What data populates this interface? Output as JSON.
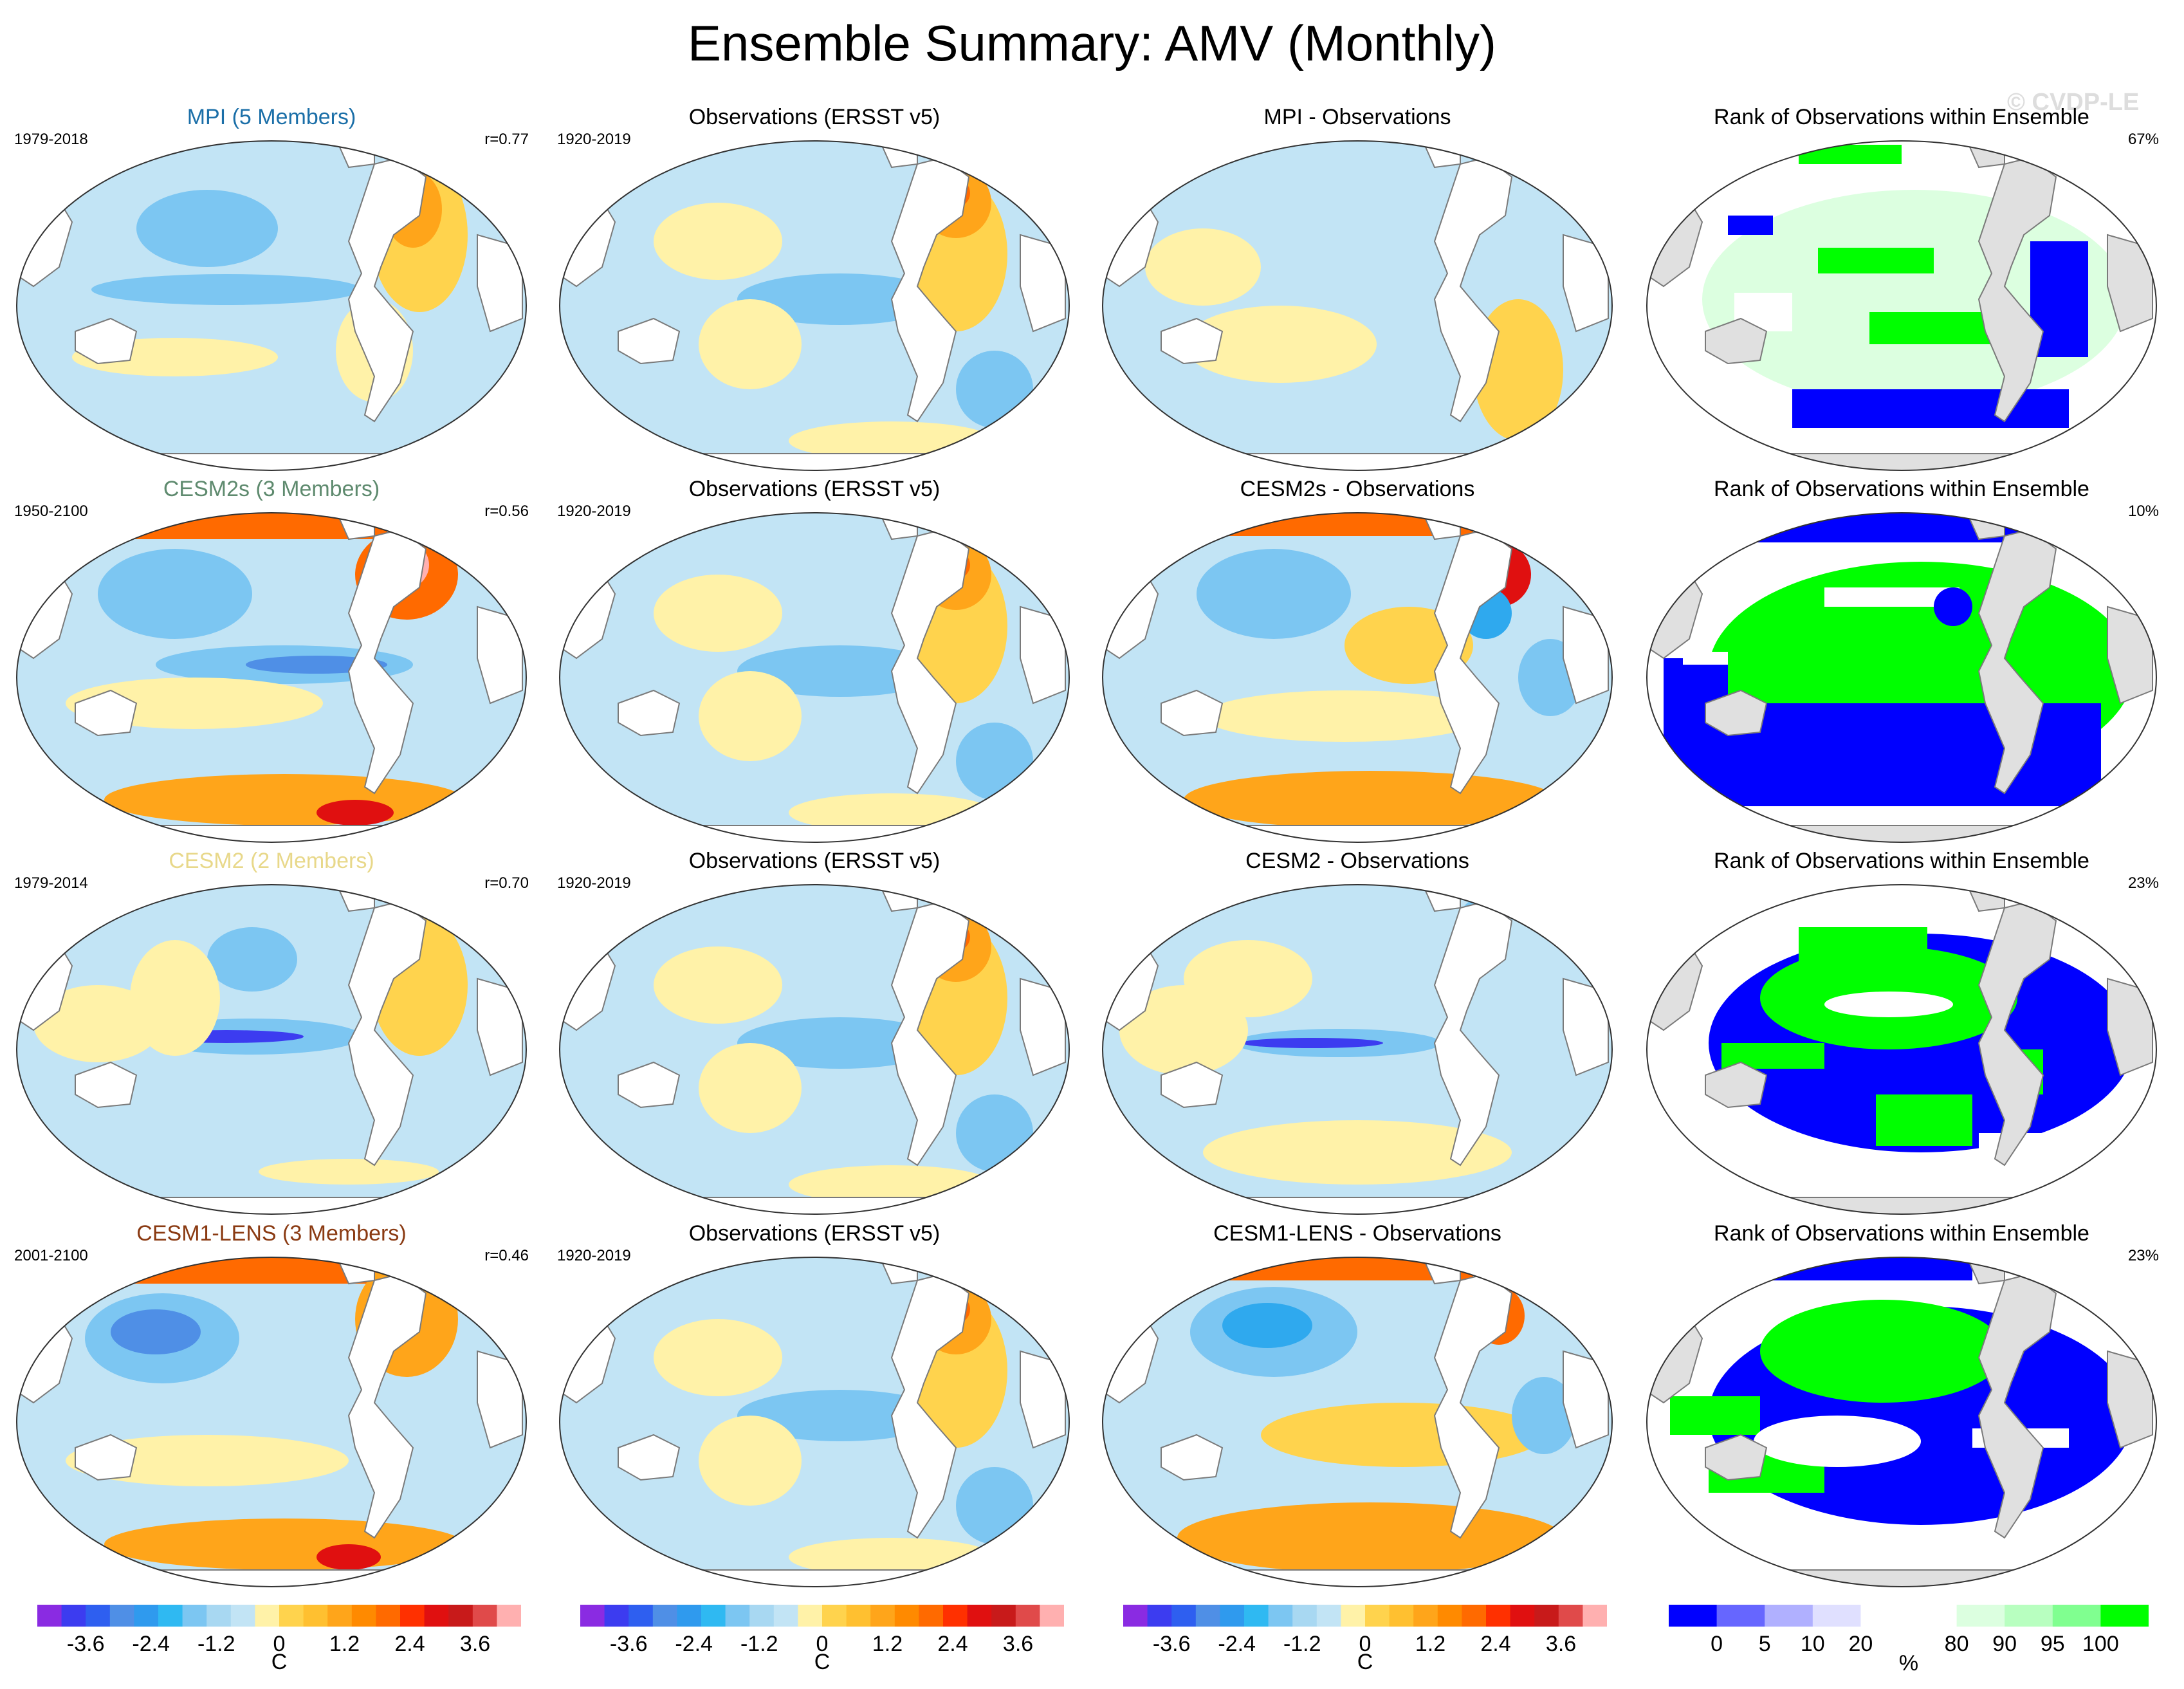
{
  "title": "Ensemble Summary: AMV (Monthly)",
  "watermark": "© CVDP-LE",
  "colors": {
    "c_neg4": "#8a2be2",
    "c_neg3": "#3c3cf0",
    "c_neg2": "#4f8fe6",
    "c_neg1": "#2fa9ee",
    "c_neg05": "#7cc6f2",
    "c_neg0": "#c2e4f5",
    "c_pos0": "#fff2a8",
    "c_pos1": "#ffd34d",
    "c_pos2": "#ffa51a",
    "c_pos3": "#ff6a00",
    "c_pos4": "#e01010",
    "c_pos5": "#ffb0b0",
    "rank_blue": "#0000ff",
    "rank_green": "#00ff00",
    "rank_light_green": "#dcffe0",
    "land": "#e0e0e0",
    "ocean_white": "#ffffff",
    "mpi_title": "#1b6fa8",
    "cesm2s_title": "#5e8a6e",
    "cesm2_title": "#e8d88a",
    "lens_title": "#8a3a12"
  },
  "rows": [
    {
      "model": {
        "title": "MPI (5 Members)",
        "title_color": "#1b6fa8",
        "years": "1979-2018",
        "r": "r=0.77",
        "pattern": "mpi"
      },
      "obs": {
        "title": "Observations (ERSST v5)",
        "years": "1920-2019"
      },
      "diff": {
        "title": "MPI - Observations",
        "pattern": "mpi_diff"
      },
      "rank": {
        "title": "Rank of Observations within Ensemble",
        "pct": "67%",
        "pattern": "rank_mpi"
      }
    },
    {
      "model": {
        "title": "CESM2s (3 Members)",
        "title_color": "#5e8a6e",
        "years": "1950-2100",
        "r": "r=0.56",
        "pattern": "cesm2s"
      },
      "obs": {
        "title": "Observations (ERSST v5)",
        "years": "1920-2019"
      },
      "diff": {
        "title": "CESM2s - Observations",
        "pattern": "cesm2s_diff"
      },
      "rank": {
        "title": "Rank of Observations within Ensemble",
        "pct": "10%",
        "pattern": "rank_cesm2s"
      }
    },
    {
      "model": {
        "title": "CESM2 (2 Members)",
        "title_color": "#e8d88a",
        "years": "1979-2014",
        "r": "r=0.70",
        "pattern": "cesm2"
      },
      "obs": {
        "title": "Observations (ERSST v5)",
        "years": "1920-2019"
      },
      "diff": {
        "title": "CESM2 - Observations",
        "pattern": "cesm2_diff"
      },
      "rank": {
        "title": "Rank of Observations within Ensemble",
        "pct": "23%",
        "pattern": "rank_cesm2"
      }
    },
    {
      "model": {
        "title": "CESM1-LENS (3 Members)",
        "title_color": "#8a3a12",
        "years": "2001-2100",
        "r": "r=0.46",
        "pattern": "lens"
      },
      "obs": {
        "title": "Observations (ERSST v5)",
        "years": "1920-2019"
      },
      "diff": {
        "title": "CESM1-LENS - Observations",
        "pattern": "lens_diff"
      },
      "rank": {
        "title": "Rank of Observations within Ensemble",
        "pct": "23%",
        "pattern": "rank_lens"
      }
    }
  ],
  "temp_colorbar": {
    "unit": "C",
    "colors": [
      "#8a2be2",
      "#3c3cf0",
      "#2e5ff0",
      "#4f8fe6",
      "#2f9aee",
      "#2fb9f2",
      "#7cc6f2",
      "#a8d8f2",
      "#c2e4f5",
      "#fff2a8",
      "#ffd34d",
      "#ffc030",
      "#ffa51a",
      "#ff8a00",
      "#ff6a00",
      "#ff3000",
      "#e01010",
      "#c81a1a",
      "#e04a4a",
      "#ffb0b0"
    ],
    "tick_labels": [
      "-3.6",
      "-2.4",
      "-1.2",
      "0",
      "1.2",
      "2.4",
      "3.6"
    ]
  },
  "rank_colorbar": {
    "unit": "%",
    "colors": [
      "#0000ff",
      "#6666ff",
      "#b0b0ff",
      "#e0e0ff",
      "#ffffff",
      "#ffffff",
      "#dcffe0",
      "#b8ffc0",
      "#80ff90",
      "#00ff00"
    ],
    "tick_labels": [
      "0",
      "5",
      "10",
      "20",
      "80",
      "90",
      "95",
      "100"
    ]
  }
}
